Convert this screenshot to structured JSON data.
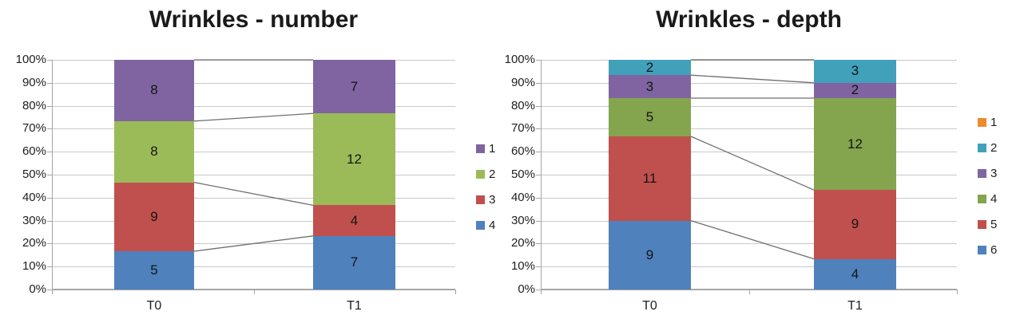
{
  "figure": {
    "background": "#FFFFFF"
  },
  "style_colors": {
    "gridline": "#C9C9C9",
    "axis": "#A6A6A6",
    "series_line": "#6F6F6F",
    "text": "#1E1E1E"
  },
  "chart_data": [
    {
      "type": "bar",
      "subtype": "100%-stacked-column",
      "title": "Wrinkles - number",
      "categories": [
        "T0",
        "T1"
      ],
      "total_per_category": [
        30,
        30
      ],
      "xlabel": "",
      "ylabel": "",
      "ylim_percent": [
        0,
        100
      ],
      "y_ticks": [
        "100%",
        "90%",
        "80%",
        "70%",
        "60%",
        "50%",
        "40%",
        "30%",
        "20%",
        "10%",
        "0%"
      ],
      "grid": true,
      "legend_position": "right",
      "series_connector_lines": true,
      "series_bottom_to_top": [
        {
          "name": "4",
          "color": "#4F81BD",
          "values": [
            5,
            7
          ]
        },
        {
          "name": "3",
          "color": "#C0504D",
          "values": [
            9,
            4
          ]
        },
        {
          "name": "2",
          "color": "#9BBB59",
          "values": [
            8,
            12
          ]
        },
        {
          "name": "1",
          "color": "#8064A2",
          "values": [
            8,
            7
          ]
        }
      ],
      "legend_top_to_bottom": [
        "1",
        "2",
        "3",
        "4"
      ]
    },
    {
      "type": "bar",
      "subtype": "100%-stacked-column",
      "title": "Wrinkles - depth",
      "categories": [
        "T0",
        "T1"
      ],
      "total_per_category": [
        30,
        30
      ],
      "xlabel": "",
      "ylabel": "",
      "ylim_percent": [
        0,
        100
      ],
      "y_ticks": [
        "100%",
        "90%",
        "80%",
        "70%",
        "60%",
        "50%",
        "40%",
        "30%",
        "20%",
        "10%",
        "0%"
      ],
      "grid": true,
      "legend_position": "right",
      "series_connector_lines": true,
      "series_bottom_to_top": [
        {
          "name": "6",
          "color": "#4F81BD",
          "values": [
            9,
            4
          ]
        },
        {
          "name": "5",
          "color": "#C0504D",
          "values": [
            11,
            9
          ]
        },
        {
          "name": "4",
          "color": "#84A44E",
          "values": [
            5,
            12
          ]
        },
        {
          "name": "3",
          "color": "#8064A2",
          "values": [
            3,
            2
          ]
        },
        {
          "name": "2",
          "color": "#41A1BB",
          "values": [
            2,
            3
          ]
        },
        {
          "name": "1",
          "color": "#EC8C30",
          "values": [
            0,
            0
          ]
        }
      ],
      "legend_top_to_bottom": [
        "1",
        "2",
        "3",
        "4",
        "5",
        "6"
      ]
    }
  ]
}
